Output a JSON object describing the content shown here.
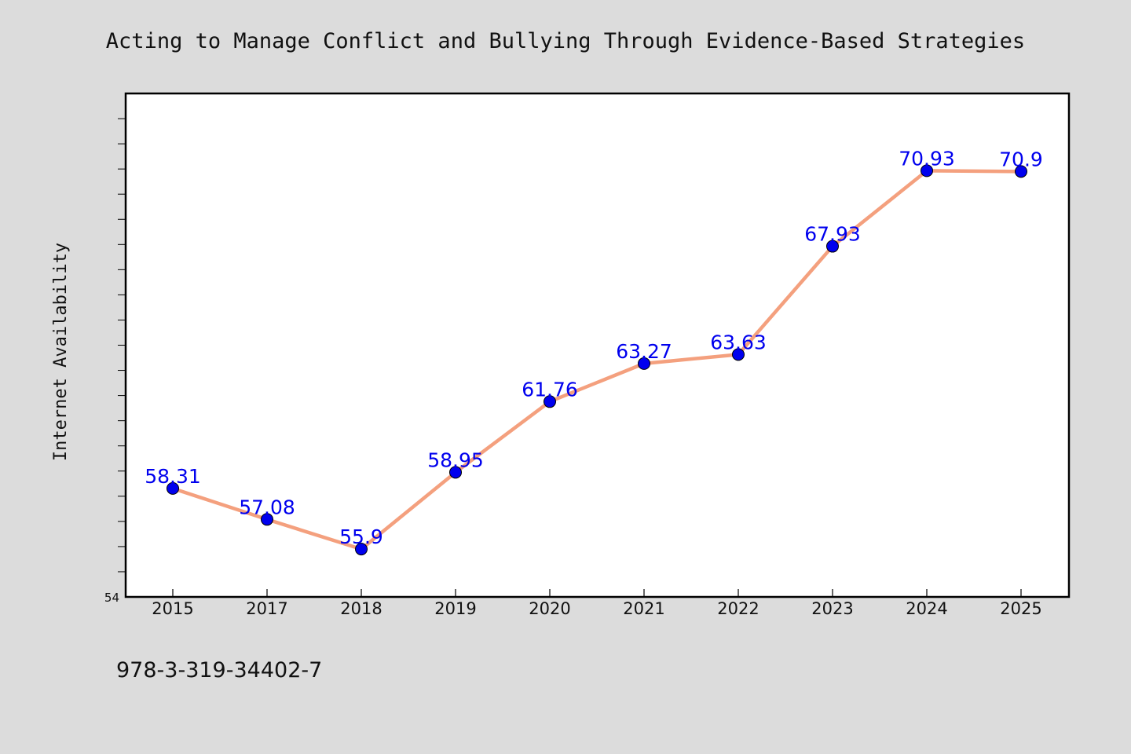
{
  "chart_data": {
    "type": "line",
    "title": "Acting to Manage Conflict and Bullying Through Evidence-Based Strategies",
    "ylabel": "Internet Availability",
    "xlabel": "",
    "categories": [
      "2015",
      "2017",
      "2018",
      "2019",
      "2020",
      "2021",
      "2022",
      "2023",
      "2024",
      "2025"
    ],
    "values": [
      58.31,
      57.08,
      55.9,
      58.95,
      61.76,
      63.27,
      63.63,
      67.93,
      70.93,
      70.9
    ],
    "value_labels": [
      "58.31",
      "57.08",
      "55.9",
      "58.95",
      "61.76",
      "63.27",
      "63.63",
      "67.93",
      "70.93",
      "70.9"
    ],
    "ylim": [
      54,
      74
    ],
    "y_min_label": "54",
    "grid": false,
    "line_color": "#f4a07e",
    "marker_color": "#0000ee",
    "label_color": "#0000ee"
  },
  "footer": {
    "isbn": "978-3-319-34402-7"
  }
}
